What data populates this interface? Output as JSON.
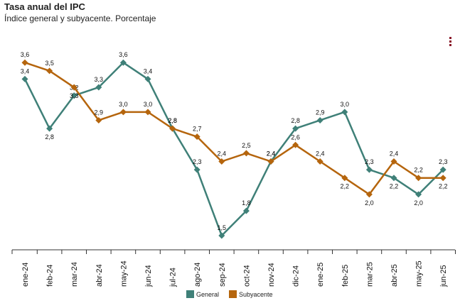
{
  "header": {
    "title": "Tasa anual del IPC",
    "subtitle": "Índice general y subyacente. Porcentaje"
  },
  "menu": {
    "icon": "vertical-dots-icon",
    "color": "#8b1a2b"
  },
  "chart_data": {
    "type": "line",
    "categories": [
      "ene-24",
      "feb-24",
      "mar-24",
      "abr-24",
      "may-24",
      "jun-24",
      "jul-24",
      "ago-24",
      "sep-24",
      "oct-24",
      "nov-24",
      "dic-24",
      "ene-25",
      "feb-25",
      "mar-25",
      "abr-25",
      "may-25",
      "jun-25"
    ],
    "series": [
      {
        "name": "General",
        "color": "#3f8078",
        "values": [
          3.4,
          2.8,
          3.2,
          3.3,
          3.6,
          3.4,
          2.8,
          2.3,
          1.5,
          1.8,
          2.4,
          2.8,
          2.9,
          3.0,
          2.3,
          2.2,
          2.0,
          2.3
        ]
      },
      {
        "name": "Subyacente",
        "color": "#b5650d",
        "values": [
          3.6,
          3.5,
          3.3,
          2.9,
          3.0,
          3.0,
          2.8,
          2.7,
          2.4,
          2.5,
          2.4,
          2.6,
          2.4,
          2.2,
          2.0,
          2.4,
          2.2,
          2.2
        ]
      }
    ],
    "ylim": [
      1.0,
      3.8
    ],
    "grid": false,
    "legend_position": "bottom-center"
  }
}
